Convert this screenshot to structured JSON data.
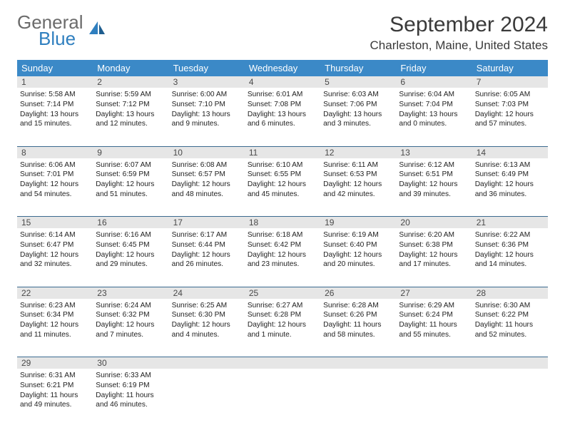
{
  "brand": {
    "line1": "General",
    "line2": "Blue",
    "logo_color": "#2f7fbf",
    "text_color": "#6b6b6b"
  },
  "title": "September 2024",
  "location": "Charleston, Maine, United States",
  "colors": {
    "header_bg": "#3b89c7",
    "header_text": "#ffffff",
    "daynum_bg": "#e6e6e6",
    "rule": "#3b6a8f",
    "body_text": "#222222"
  },
  "weekdays": [
    "Sunday",
    "Monday",
    "Tuesday",
    "Wednesday",
    "Thursday",
    "Friday",
    "Saturday"
  ],
  "weeks": [
    [
      {
        "n": "1",
        "sunrise": "Sunrise: 5:58 AM",
        "sunset": "Sunset: 7:14 PM",
        "day1": "Daylight: 13 hours",
        "day2": "and 15 minutes."
      },
      {
        "n": "2",
        "sunrise": "Sunrise: 5:59 AM",
        "sunset": "Sunset: 7:12 PM",
        "day1": "Daylight: 13 hours",
        "day2": "and 12 minutes."
      },
      {
        "n": "3",
        "sunrise": "Sunrise: 6:00 AM",
        "sunset": "Sunset: 7:10 PM",
        "day1": "Daylight: 13 hours",
        "day2": "and 9 minutes."
      },
      {
        "n": "4",
        "sunrise": "Sunrise: 6:01 AM",
        "sunset": "Sunset: 7:08 PM",
        "day1": "Daylight: 13 hours",
        "day2": "and 6 minutes."
      },
      {
        "n": "5",
        "sunrise": "Sunrise: 6:03 AM",
        "sunset": "Sunset: 7:06 PM",
        "day1": "Daylight: 13 hours",
        "day2": "and 3 minutes."
      },
      {
        "n": "6",
        "sunrise": "Sunrise: 6:04 AM",
        "sunset": "Sunset: 7:04 PM",
        "day1": "Daylight: 13 hours",
        "day2": "and 0 minutes."
      },
      {
        "n": "7",
        "sunrise": "Sunrise: 6:05 AM",
        "sunset": "Sunset: 7:03 PM",
        "day1": "Daylight: 12 hours",
        "day2": "and 57 minutes."
      }
    ],
    [
      {
        "n": "8",
        "sunrise": "Sunrise: 6:06 AM",
        "sunset": "Sunset: 7:01 PM",
        "day1": "Daylight: 12 hours",
        "day2": "and 54 minutes."
      },
      {
        "n": "9",
        "sunrise": "Sunrise: 6:07 AM",
        "sunset": "Sunset: 6:59 PM",
        "day1": "Daylight: 12 hours",
        "day2": "and 51 minutes."
      },
      {
        "n": "10",
        "sunrise": "Sunrise: 6:08 AM",
        "sunset": "Sunset: 6:57 PM",
        "day1": "Daylight: 12 hours",
        "day2": "and 48 minutes."
      },
      {
        "n": "11",
        "sunrise": "Sunrise: 6:10 AM",
        "sunset": "Sunset: 6:55 PM",
        "day1": "Daylight: 12 hours",
        "day2": "and 45 minutes."
      },
      {
        "n": "12",
        "sunrise": "Sunrise: 6:11 AM",
        "sunset": "Sunset: 6:53 PM",
        "day1": "Daylight: 12 hours",
        "day2": "and 42 minutes."
      },
      {
        "n": "13",
        "sunrise": "Sunrise: 6:12 AM",
        "sunset": "Sunset: 6:51 PM",
        "day1": "Daylight: 12 hours",
        "day2": "and 39 minutes."
      },
      {
        "n": "14",
        "sunrise": "Sunrise: 6:13 AM",
        "sunset": "Sunset: 6:49 PM",
        "day1": "Daylight: 12 hours",
        "day2": "and 36 minutes."
      }
    ],
    [
      {
        "n": "15",
        "sunrise": "Sunrise: 6:14 AM",
        "sunset": "Sunset: 6:47 PM",
        "day1": "Daylight: 12 hours",
        "day2": "and 32 minutes."
      },
      {
        "n": "16",
        "sunrise": "Sunrise: 6:16 AM",
        "sunset": "Sunset: 6:45 PM",
        "day1": "Daylight: 12 hours",
        "day2": "and 29 minutes."
      },
      {
        "n": "17",
        "sunrise": "Sunrise: 6:17 AM",
        "sunset": "Sunset: 6:44 PM",
        "day1": "Daylight: 12 hours",
        "day2": "and 26 minutes."
      },
      {
        "n": "18",
        "sunrise": "Sunrise: 6:18 AM",
        "sunset": "Sunset: 6:42 PM",
        "day1": "Daylight: 12 hours",
        "day2": "and 23 minutes."
      },
      {
        "n": "19",
        "sunrise": "Sunrise: 6:19 AM",
        "sunset": "Sunset: 6:40 PM",
        "day1": "Daylight: 12 hours",
        "day2": "and 20 minutes."
      },
      {
        "n": "20",
        "sunrise": "Sunrise: 6:20 AM",
        "sunset": "Sunset: 6:38 PM",
        "day1": "Daylight: 12 hours",
        "day2": "and 17 minutes."
      },
      {
        "n": "21",
        "sunrise": "Sunrise: 6:22 AM",
        "sunset": "Sunset: 6:36 PM",
        "day1": "Daylight: 12 hours",
        "day2": "and 14 minutes."
      }
    ],
    [
      {
        "n": "22",
        "sunrise": "Sunrise: 6:23 AM",
        "sunset": "Sunset: 6:34 PM",
        "day1": "Daylight: 12 hours",
        "day2": "and 11 minutes."
      },
      {
        "n": "23",
        "sunrise": "Sunrise: 6:24 AM",
        "sunset": "Sunset: 6:32 PM",
        "day1": "Daylight: 12 hours",
        "day2": "and 7 minutes."
      },
      {
        "n": "24",
        "sunrise": "Sunrise: 6:25 AM",
        "sunset": "Sunset: 6:30 PM",
        "day1": "Daylight: 12 hours",
        "day2": "and 4 minutes."
      },
      {
        "n": "25",
        "sunrise": "Sunrise: 6:27 AM",
        "sunset": "Sunset: 6:28 PM",
        "day1": "Daylight: 12 hours",
        "day2": "and 1 minute."
      },
      {
        "n": "26",
        "sunrise": "Sunrise: 6:28 AM",
        "sunset": "Sunset: 6:26 PM",
        "day1": "Daylight: 11 hours",
        "day2": "and 58 minutes."
      },
      {
        "n": "27",
        "sunrise": "Sunrise: 6:29 AM",
        "sunset": "Sunset: 6:24 PM",
        "day1": "Daylight: 11 hours",
        "day2": "and 55 minutes."
      },
      {
        "n": "28",
        "sunrise": "Sunrise: 6:30 AM",
        "sunset": "Sunset: 6:22 PM",
        "day1": "Daylight: 11 hours",
        "day2": "and 52 minutes."
      }
    ],
    [
      {
        "n": "29",
        "sunrise": "Sunrise: 6:31 AM",
        "sunset": "Sunset: 6:21 PM",
        "day1": "Daylight: 11 hours",
        "day2": "and 49 minutes."
      },
      {
        "n": "30",
        "sunrise": "Sunrise: 6:33 AM",
        "sunset": "Sunset: 6:19 PM",
        "day1": "Daylight: 11 hours",
        "day2": "and 46 minutes."
      },
      null,
      null,
      null,
      null,
      null
    ]
  ]
}
